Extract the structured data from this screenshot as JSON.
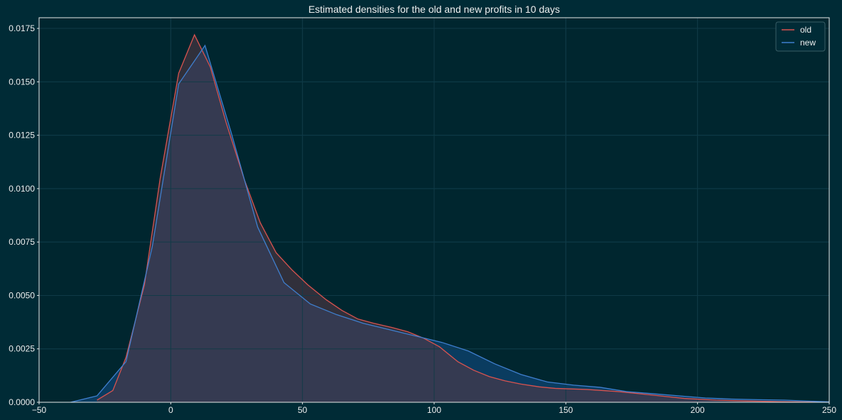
{
  "chart_data": {
    "type": "area",
    "title": "Estimated densities for the old and new profits in 10 days",
    "xlabel": "",
    "ylabel": "",
    "xlim": [
      -50,
      250
    ],
    "ylim": [
      0,
      0.018
    ],
    "x_ticks": [
      -50,
      0,
      50,
      100,
      150,
      200,
      250
    ],
    "x_tick_labels": [
      "−50",
      "0",
      "50",
      "100",
      "150",
      "200",
      "250"
    ],
    "y_ticks": [
      0,
      0.0025,
      0.005,
      0.0075,
      0.01,
      0.0125,
      0.015,
      0.0175
    ],
    "y_tick_labels": [
      "0.0000",
      "0.0025",
      "0.0050",
      "0.0075",
      "0.0100",
      "0.0125",
      "0.0150",
      "0.0175"
    ],
    "grid": true,
    "legend_position": "top-right",
    "series": [
      {
        "name": "old",
        "color": "#d9534f",
        "fill": "#3b3a4f",
        "x": [
          -28,
          -22,
          -17,
          -10,
          -4,
          3,
          9,
          15,
          21,
          28,
          34,
          40,
          46,
          52,
          59,
          65,
          71,
          77,
          84,
          90,
          96,
          102,
          109,
          115,
          121,
          127,
          133,
          140,
          146,
          158,
          170,
          182,
          195,
          207,
          219,
          231,
          243,
          250
        ],
        "y": [
          0.0001,
          0.00055,
          0.0021,
          0.0055,
          0.0105,
          0.0154,
          0.0172,
          0.0157,
          0.0131,
          0.0104,
          0.0084,
          0.007,
          0.0062,
          0.0055,
          0.0048,
          0.0043,
          0.0039,
          0.0037,
          0.0035,
          0.0033,
          0.003,
          0.0026,
          0.0019,
          0.0015,
          0.0012,
          0.001,
          0.00085,
          0.00072,
          0.00065,
          0.0006,
          0.0005,
          0.00035,
          0.00018,
          0.0001,
          6e-05,
          3e-05,
          1e-05,
          1e-05
        ]
      },
      {
        "name": "new",
        "color": "#3f7fce",
        "fill": "#0b3d5e",
        "x": [
          -38,
          -28,
          -17,
          -7,
          3,
          13,
          23,
          33,
          43,
          53,
          63,
          73,
          83,
          93,
          103,
          113,
          123,
          133,
          143,
          153,
          163,
          173,
          183,
          193,
          203,
          213,
          223,
          233,
          243,
          250
        ],
        "y": [
          0,
          0.0003,
          0.0019,
          0.0073,
          0.0149,
          0.0167,
          0.0126,
          0.0082,
          0.0056,
          0.0046,
          0.0041,
          0.0037,
          0.0034,
          0.0031,
          0.0028,
          0.0024,
          0.0018,
          0.0013,
          0.00095,
          0.0008,
          0.0007,
          0.0005,
          0.0004,
          0.0003,
          0.0002,
          0.00015,
          0.00012,
          0.0001,
          5e-05,
          2e-05
        ]
      }
    ]
  }
}
